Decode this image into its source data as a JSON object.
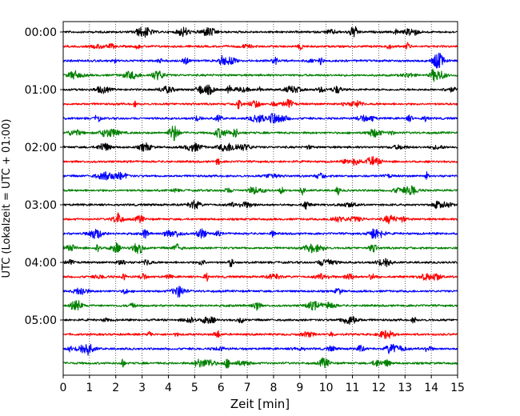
{
  "chart_data": {
    "type": "line",
    "subtype": "helicorder",
    "xlabel": "Zeit  [min]",
    "ylabel": "UTC (Lokalzeit = UTC + 01:00)",
    "xlim": [
      0,
      15
    ],
    "x_ticks": [
      "0",
      "1",
      "2",
      "3",
      "4",
      "5",
      "6",
      "7",
      "8",
      "9",
      "10",
      "11",
      "12",
      "13",
      "14",
      "15"
    ],
    "y_tick_labels": [
      "00:00",
      "01:00",
      "02:00",
      "03:00",
      "04:00",
      "05:00"
    ],
    "grid": "vertical dotted at each minute",
    "trace_minutes": 15,
    "trace_count": 24,
    "trace_colors": [
      "#000000",
      "#ff0000",
      "#0000ff",
      "#008000"
    ],
    "traces": [
      {
        "start": "00:00",
        "color": "#000000"
      },
      {
        "start": "00:15",
        "color": "#ff0000"
      },
      {
        "start": "00:30",
        "color": "#0000ff"
      },
      {
        "start": "00:45",
        "color": "#008000"
      },
      {
        "start": "01:00",
        "color": "#000000"
      },
      {
        "start": "01:15",
        "color": "#ff0000"
      },
      {
        "start": "01:30",
        "color": "#0000ff"
      },
      {
        "start": "01:45",
        "color": "#008000"
      },
      {
        "start": "02:00",
        "color": "#000000"
      },
      {
        "start": "02:15",
        "color": "#ff0000"
      },
      {
        "start": "02:30",
        "color": "#0000ff"
      },
      {
        "start": "02:45",
        "color": "#008000"
      },
      {
        "start": "03:00",
        "color": "#000000"
      },
      {
        "start": "03:15",
        "color": "#ff0000"
      },
      {
        "start": "03:30",
        "color": "#0000ff"
      },
      {
        "start": "03:45",
        "color": "#008000"
      },
      {
        "start": "04:00",
        "color": "#000000"
      },
      {
        "start": "04:15",
        "color": "#ff0000"
      },
      {
        "start": "04:30",
        "color": "#0000ff"
      },
      {
        "start": "04:45",
        "color": "#008000"
      },
      {
        "start": "05:00",
        "color": "#000000"
      },
      {
        "start": "05:15",
        "color": "#ff0000"
      },
      {
        "start": "05:30",
        "color": "#0000ff"
      },
      {
        "start": "05:45",
        "color": "#008000"
      }
    ]
  }
}
